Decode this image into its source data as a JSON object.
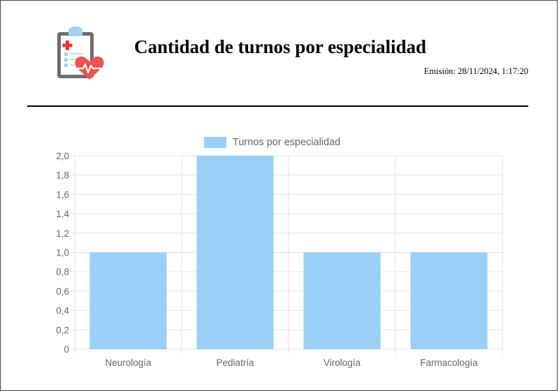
{
  "report": {
    "title": "Cantidad de turnos por especialidad",
    "emission_label": "Emisión:",
    "emission_value": "28/11/2024, 1:17:20"
  },
  "icon": {
    "name": "medical-clipboard-heart-icon"
  },
  "colors": {
    "bar_fill": "#9ad0f5",
    "bar_border": "#36a2eb",
    "grid": "#e5e5e5",
    "tick_text": "#666666"
  },
  "chart_data": {
    "type": "bar",
    "categories": [
      "Neurología",
      "Pediatría",
      "Virología",
      "Farmacología"
    ],
    "series": [
      {
        "name": "Turnos por especialidad",
        "values": [
          1,
          2,
          1,
          1
        ]
      }
    ],
    "yticks": [
      "0",
      "0,2",
      "0,4",
      "0,6",
      "0,8",
      "1,0",
      "1,2",
      "1,4",
      "1,6",
      "1,8",
      "2,0"
    ],
    "ylim": [
      0,
      2
    ],
    "grid": true,
    "legend_position": "top"
  }
}
